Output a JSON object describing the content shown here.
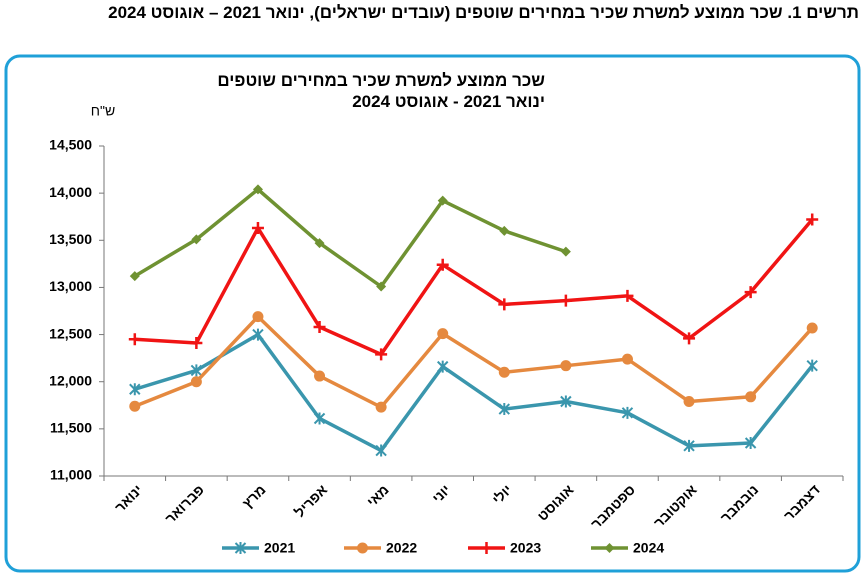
{
  "chart_data": {
    "type": "line",
    "title": "תרשים 1. שכר ממוצע למשרת שכיר במחירים שוטפים (עובדים ישראלים), ינואר 2021 – אוגוסט 2024",
    "subtitle": [
      "שכר ממוצע למשרת שכיר במחירים  שוטפים",
      "ינואר 2021 - אוגוסט 2024"
    ],
    "y_label": "ש\"ח",
    "categories": [
      "ינואר",
      "פברואר",
      "מרץ",
      "אפריל",
      "מאי",
      "יוני",
      "יולי",
      "אוגוסט",
      "ספטמבר",
      "אוקטובר",
      "נובמבר",
      "דצמבר"
    ],
    "series": [
      {
        "name": "2021",
        "color": "#3a96ad",
        "marker": "asterisk",
        "values": [
          11920,
          12120,
          12500,
          11610,
          11270,
          12160,
          11710,
          11790,
          11670,
          11320,
          11350,
          12170
        ]
      },
      {
        "name": "2022",
        "color": "#e5893f",
        "marker": "circle",
        "values": [
          11740,
          12000,
          12690,
          12060,
          11730,
          12510,
          12100,
          12170,
          12240,
          11790,
          11840,
          12570
        ]
      },
      {
        "name": "2023",
        "color": "#f01414",
        "marker": "plus",
        "values": [
          12450,
          12410,
          13630,
          12580,
          12290,
          13240,
          12820,
          12860,
          12910,
          12460,
          12950,
          13720
        ]
      },
      {
        "name": "2024",
        "color": "#6f9232",
        "marker": "diamond",
        "values": [
          13120,
          13510,
          14040,
          13470,
          13010,
          13920,
          13600,
          13380,
          null,
          null,
          null,
          null
        ]
      }
    ],
    "ylim": [
      11000,
      14500
    ],
    "yticks": [
      {
        "value": 11000,
        "label": "11,000"
      },
      {
        "value": 11500,
        "label": "11,500"
      },
      {
        "value": 12000,
        "label": "12,000"
      },
      {
        "value": 12500,
        "label": "12,500"
      },
      {
        "value": 13000,
        "label": "13,000"
      },
      {
        "value": 13500,
        "label": "13,500"
      },
      {
        "value": 14000,
        "label": "14,000"
      },
      {
        "value": 14500,
        "label": "14,500"
      }
    ],
    "grid": false,
    "legend": "bottom"
  }
}
